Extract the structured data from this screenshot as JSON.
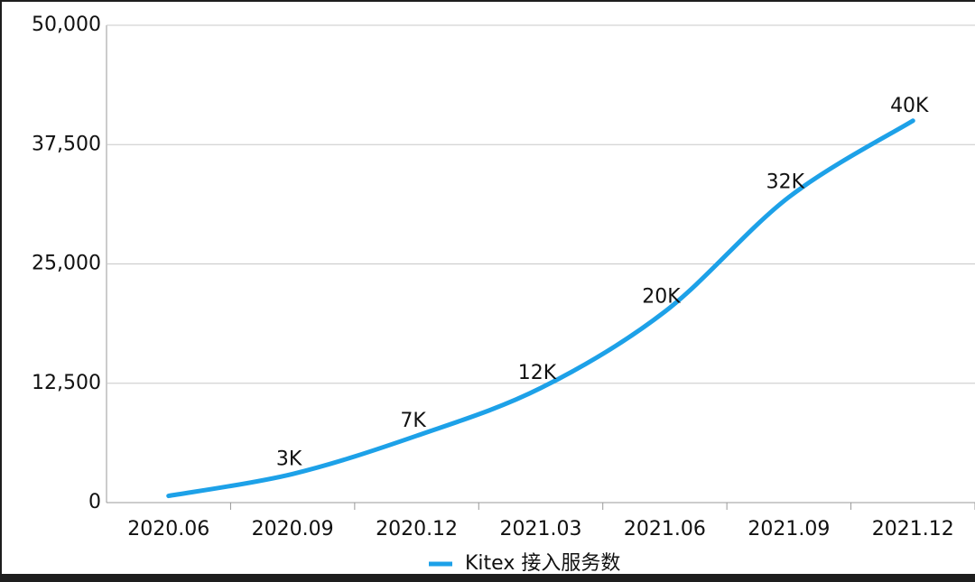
{
  "chart_data": {
    "type": "line",
    "categories": [
      "2020.06",
      "2020.09",
      "2020.12",
      "2021.03",
      "2021.06",
      "2021.09",
      "2021.12"
    ],
    "series": [
      {
        "name": "Kitex 接入服务数",
        "color": "#1da1e8",
        "values": [
          700,
          3000,
          7000,
          12000,
          20000,
          32000,
          40000
        ],
        "value_labels": [
          null,
          "3K",
          "7K",
          "12K",
          "20K",
          "32K",
          "40K"
        ]
      }
    ],
    "ylim": [
      0,
      50000
    ],
    "yticks": [
      0,
      {
        "value": 12500,
        "label": "12,500"
      },
      {
        "value": 25000,
        "label": "25,000"
      },
      {
        "value": 37500,
        "label": "37,500"
      },
      {
        "value": 50000,
        "label": "50,000"
      }
    ],
    "grid": true,
    "legend": "bottom"
  }
}
